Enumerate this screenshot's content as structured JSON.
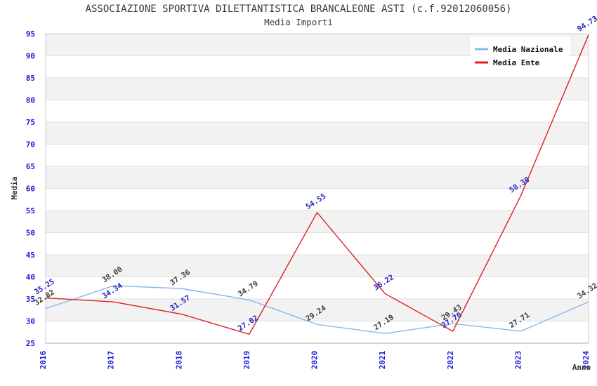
{
  "header": {
    "title": "ASSOCIAZIONE SPORTIVA DILETTANTISTICA BRANCALEONE ASTI (c.f.92012060056)",
    "subtitle": "Media Importi"
  },
  "legend": {
    "items": [
      {
        "label": "Media Nazionale",
        "color": "#88b8e8"
      },
      {
        "label": "Media Ente",
        "color": "#e02020"
      }
    ]
  },
  "chart_data": {
    "type": "line",
    "title": "ASSOCIAZIONE SPORTIVA DILETTANTISTICA BRANCALEONE ASTI (c.f.92012060056)",
    "subtitle": "Media Importi",
    "xlabel": "Anno",
    "ylabel": "Media",
    "x": [
      "2016",
      "2017",
      "2018",
      "2019",
      "2020",
      "2021",
      "2022",
      "2023",
      "2024"
    ],
    "series": [
      {
        "name": "Media Nazionale",
        "color": "#88b8e8",
        "label_color": "#3a3a3a",
        "values": [
          32.82,
          38.0,
          37.36,
          34.79,
          29.24,
          27.19,
          29.43,
          27.71,
          34.32
        ]
      },
      {
        "name": "Media Ente",
        "color": "#e02020",
        "label_color": "#2323bb",
        "values": [
          35.25,
          34.34,
          31.57,
          27.02,
          54.55,
          36.22,
          27.7,
          58.3,
          94.73
        ]
      }
    ],
    "ylim": [
      25,
      95
    ],
    "ytick_step": 5,
    "grid": true,
    "legend_position": "top-right",
    "colors": {
      "band": "#f2f2f2",
      "grid": "#e0e0e0",
      "border": "#cccccc",
      "axis_line": "#aaaaaa",
      "tick_label": "#1717dd"
    }
  }
}
